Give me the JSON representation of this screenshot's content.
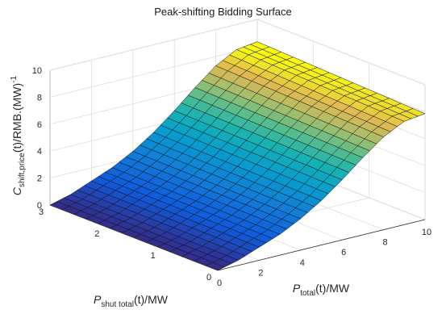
{
  "chart_data": {
    "type": "surface",
    "title": "Peak-shifting Bidding Surface",
    "xlabel": {
      "main": "P",
      "sub": "total",
      "rest": "(t)/MW"
    },
    "ylabel": {
      "main": "P",
      "sub": "shut total",
      "rest": "(t)/MW"
    },
    "zlabel": {
      "main": "C",
      "sub": "shift,price",
      "rest": "(t)/RMB.(MW)",
      "sup": "-1"
    },
    "xlim": [
      0,
      10
    ],
    "ylim": [
      0,
      3
    ],
    "zlim": [
      0,
      10
    ],
    "xticks": [
      "0",
      "2",
      "4",
      "6",
      "8",
      "10"
    ],
    "yticks": [
      "0",
      "1",
      "2",
      "3"
    ],
    "zticks": [
      "0",
      "2",
      "4",
      "6",
      "8",
      "10"
    ],
    "grid": true,
    "colormap": "parula",
    "z_over_x": {
      "x": [
        0,
        1,
        2,
        3,
        4,
        5,
        6,
        7,
        8,
        9,
        10
      ],
      "z": [
        0,
        0.4,
        1.0,
        1.6,
        2.4,
        3.4,
        4.6,
        5.9,
        7.1,
        7.9,
        8.1
      ]
    },
    "z_y_dependence": "nearly constant in y"
  }
}
